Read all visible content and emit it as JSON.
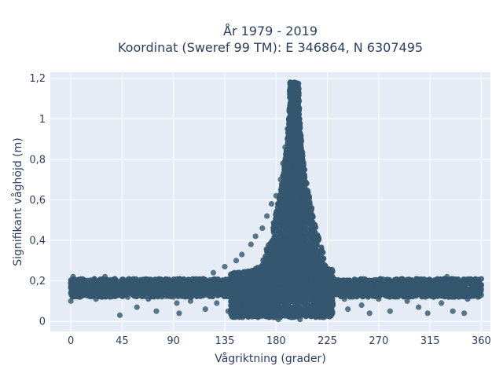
{
  "chart_data": {
    "type": "scatter",
    "title_line1": "År 1979 - 2019",
    "title_line2": "Koordinat (Sweref 99 TM): E 346864, N 6307495",
    "xlabel": "Vågriktning (grader)",
    "ylabel": "Signifikant våghöjd (m)",
    "xlim": [
      -18,
      368
    ],
    "ylim": [
      -0.05,
      1.23
    ],
    "xticks": [
      0,
      45,
      90,
      135,
      180,
      225,
      270,
      315,
      360
    ],
    "xtick_labels": [
      "0",
      "45",
      "90",
      "135",
      "180",
      "225",
      "270",
      "315",
      "360"
    ],
    "yticks": [
      0,
      0.2,
      0.4,
      0.6,
      0.8,
      1.0,
      1.2
    ],
    "ytick_labels": [
      "0",
      "0,2",
      "0,4",
      "0,6",
      "0,8",
      "1",
      "1,2"
    ],
    "grid": true,
    "marker_color": "#34566e",
    "plot_background": "#e5ecf6",
    "series": [
      {
        "points": [
          [
            0,
            0.14
          ],
          [
            0,
            0.19
          ],
          [
            0,
            0.1
          ],
          [
            2,
            0.22
          ],
          [
            5,
            0.17
          ],
          [
            8,
            0.12
          ],
          [
            12,
            0.2
          ],
          [
            18,
            0.15
          ],
          [
            22,
            0.11
          ],
          [
            25,
            0.18
          ],
          [
            30,
            0.22
          ],
          [
            32,
            0.13
          ],
          [
            40,
            0.16
          ],
          [
            43,
            0.03
          ],
          [
            45,
            0.19
          ],
          [
            50,
            0.12
          ],
          [
            55,
            0.21
          ],
          [
            58,
            0.07
          ],
          [
            62,
            0.15
          ],
          [
            68,
            0.11
          ],
          [
            70,
            0.19
          ],
          [
            75,
            0.05
          ],
          [
            80,
            0.14
          ],
          [
            85,
            0.2
          ],
          [
            90,
            0.12
          ],
          [
            93,
            0.09
          ],
          [
            95,
            0.04
          ],
          [
            100,
            0.17
          ],
          [
            105,
            0.1
          ],
          [
            110,
            0.21
          ],
          [
            115,
            0.13
          ],
          [
            118,
            0.06
          ],
          [
            120,
            0.18
          ],
          [
            125,
            0.24
          ],
          [
            128,
            0.09
          ],
          [
            132,
            0.15
          ],
          [
            135,
            0.27
          ],
          [
            138,
            0.05
          ],
          [
            140,
            0.2
          ],
          [
            145,
            0.3
          ],
          [
            148,
            0.1
          ],
          [
            150,
            0.33
          ],
          [
            152,
            0.03
          ],
          [
            155,
            0.22
          ],
          [
            158,
            0.38
          ],
          [
            160,
            0.14
          ],
          [
            162,
            0.42
          ],
          [
            165,
            0.05
          ],
          [
            168,
            0.46
          ],
          [
            170,
            0.25
          ],
          [
            172,
            0.52
          ],
          [
            174,
            0.02
          ],
          [
            176,
            0.58
          ],
          [
            178,
            0.35
          ],
          [
            180,
            0.62
          ],
          [
            182,
            0.01
          ],
          [
            184,
            0.7
          ],
          [
            186,
            0.78
          ],
          [
            187,
            0.1
          ],
          [
            188,
            0.86
          ],
          [
            190,
            0.95
          ],
          [
            191,
            0.3
          ],
          [
            192,
            1.05
          ],
          [
            193,
            0.02
          ],
          [
            194,
            1.12
          ],
          [
            195,
            1.17
          ],
          [
            196,
            1.18
          ],
          [
            197,
            1.15
          ],
          [
            198,
            1.1
          ],
          [
            199,
            0.6
          ],
          [
            200,
            1.02
          ],
          [
            201,
            0.01
          ],
          [
            202,
            0.9
          ],
          [
            204,
            0.7
          ],
          [
            205,
            0.15
          ],
          [
            206,
            0.55
          ],
          [
            208,
            0.45
          ],
          [
            210,
            0.38
          ],
          [
            212,
            0.05
          ],
          [
            214,
            0.33
          ],
          [
            216,
            0.28
          ],
          [
            218,
            0.12
          ],
          [
            220,
            0.26
          ],
          [
            222,
            0.02
          ],
          [
            225,
            0.24
          ],
          [
            228,
            0.09
          ],
          [
            230,
            0.21
          ],
          [
            235,
            0.16
          ],
          [
            240,
            0.11
          ],
          [
            243,
            0.06
          ],
          [
            245,
            0.19
          ],
          [
            250,
            0.13
          ],
          [
            255,
            0.08
          ],
          [
            260,
            0.2
          ],
          [
            262,
            0.04
          ],
          [
            265,
            0.15
          ],
          [
            270,
            0.11
          ],
          [
            275,
            0.18
          ],
          [
            280,
            0.05
          ],
          [
            285,
            0.13
          ],
          [
            290,
            0.21
          ],
          [
            295,
            0.1
          ],
          [
            300,
            0.16
          ],
          [
            305,
            0.07
          ],
          [
            310,
            0.2
          ],
          [
            313,
            0.04
          ],
          [
            315,
            0.14
          ],
          [
            320,
            0.18
          ],
          [
            325,
            0.09
          ],
          [
            330,
            0.22
          ],
          [
            335,
            0.05
          ],
          [
            338,
            0.13
          ],
          [
            340,
            0.17
          ],
          [
            345,
            0.04
          ],
          [
            348,
            0.11
          ],
          [
            350,
            0.2
          ],
          [
            354,
            0.15
          ],
          [
            357,
            0.12
          ],
          [
            360,
            0.18
          ],
          [
            360,
            0.13
          ],
          [
            360,
            0.16
          ]
        ]
      }
    ]
  }
}
